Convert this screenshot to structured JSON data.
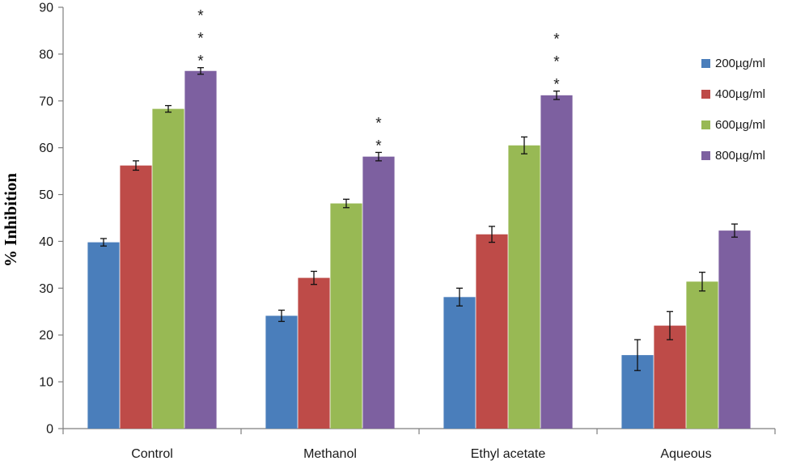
{
  "chart_data": {
    "type": "bar",
    "title": "",
    "xlabel": "",
    "ylabel": "% Inhibition",
    "ylim": [
      0,
      90
    ],
    "yticks": [
      0,
      10,
      20,
      30,
      40,
      50,
      60,
      70,
      80,
      90
    ],
    "categories": [
      "Control",
      "Methanol",
      "Ethyl acetate",
      "Aqueous"
    ],
    "series": [
      {
        "name": "200µg/ml",
        "color": "#4a7ebb",
        "values": [
          39.8,
          24.1,
          28.1,
          15.7
        ],
        "errors": [
          0.8,
          1.2,
          1.9,
          3.3
        ]
      },
      {
        "name": "400µg/ml",
        "color": "#be4b48",
        "values": [
          56.2,
          32.2,
          41.5,
          22.0
        ],
        "errors": [
          1.0,
          1.4,
          1.7,
          3.0
        ]
      },
      {
        "name": "600µg/ml",
        "color": "#98b954",
        "values": [
          68.3,
          48.1,
          60.5,
          31.4
        ],
        "errors": [
          0.7,
          0.9,
          1.8,
          2.0
        ]
      },
      {
        "name": "800µg/ml",
        "color": "#7d60a0",
        "values": [
          76.4,
          58.1,
          71.2,
          42.3
        ],
        "errors": [
          0.7,
          0.9,
          0.9,
          1.4
        ]
      }
    ],
    "significance": [
      {
        "category": "Control",
        "series": "800µg/ml",
        "marks": [
          "*",
          "*",
          "*"
        ]
      },
      {
        "category": "Methanol",
        "series": "800µg/ml",
        "marks": [
          "*",
          "*"
        ]
      },
      {
        "category": "Ethyl acetate",
        "series": "800µg/ml",
        "marks": [
          "*",
          "*",
          "*"
        ]
      }
    ],
    "legend_position": "right",
    "grid": false
  }
}
